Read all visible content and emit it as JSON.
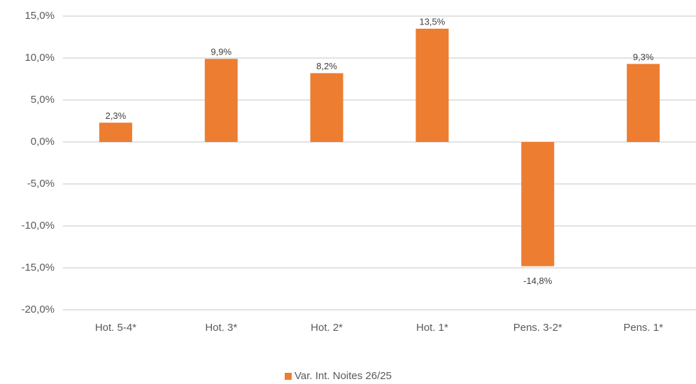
{
  "chart_data": {
    "type": "bar",
    "categories": [
      "Hot. 5-4*",
      "Hot. 3*",
      "Hot. 2*",
      "Hot. 1*",
      "Pens. 3-2*",
      "Pens. 1*"
    ],
    "series": [
      {
        "name": "Var. Int. Noites 26/25",
        "color": "#ed7d31",
        "values": [
          2.3,
          9.9,
          8.2,
          13.5,
          -14.8,
          9.3
        ],
        "value_labels": [
          "2,3%",
          "9,9%",
          "8,2%",
          "13,5%",
          "-14,8%",
          "9,3%"
        ]
      }
    ],
    "ylim": [
      -20,
      15
    ],
    "yticks": [
      {
        "value": -20,
        "label": "-20,0%"
      },
      {
        "value": -15,
        "label": "-15,0%"
      },
      {
        "value": -10,
        "label": "-10,0%"
      },
      {
        "value": -5,
        "label": "-5,0%"
      },
      {
        "value": 0,
        "label": "0,0%"
      },
      {
        "value": 5,
        "label": "5,0%"
      },
      {
        "value": 10,
        "label": "10,0%"
      },
      {
        "value": 15,
        "label": "15,0%"
      }
    ],
    "grid": true,
    "legend": "bottom"
  }
}
